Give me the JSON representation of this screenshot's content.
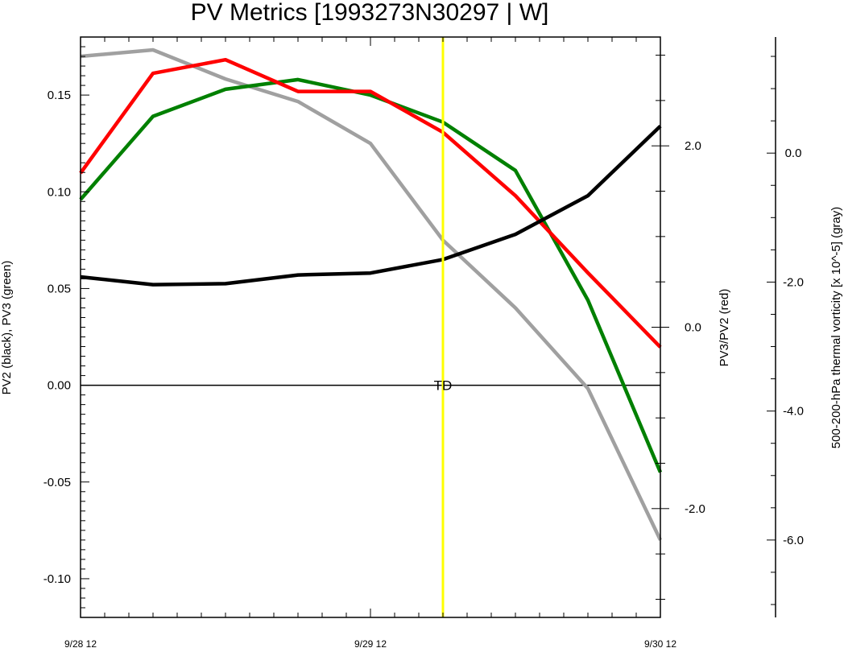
{
  "chart_data": {
    "type": "line",
    "title": "PV Metrics [1993273N30297 | W]",
    "x_tick_labels": [
      "9/28 12",
      "9/29 12",
      "9/30 12"
    ],
    "x_points": 9,
    "axes": {
      "left": {
        "label": "PV2 (black), PV3 (green)",
        "ylim": [
          -0.12,
          0.18
        ],
        "ticks": [
          -0.1,
          -0.05,
          0.0,
          0.05,
          0.1,
          0.15
        ],
        "tick_labels": [
          "-0.10",
          "-0.05",
          "0.00",
          "0.05",
          "0.10",
          "0.15"
        ]
      },
      "right": {
        "label": "PV3/PV2 (red)",
        "ylim": [
          -3.2,
          3.2
        ],
        "ticks": [
          -2.0,
          0.0,
          2.0
        ],
        "tick_labels": [
          "-2.0",
          "0.0",
          "2.0"
        ]
      },
      "far_right": {
        "label": "500-200-hPa thermal vorticity [x 10^-5] (gray)",
        "ylim": [
          -7.2,
          1.8
        ],
        "ticks": [
          -6.0,
          -4.0,
          -2.0,
          0.0
        ],
        "tick_labels": [
          "-6.0",
          "-4.0",
          "-2.0",
          "0.0"
        ]
      }
    },
    "series": [
      {
        "color": "#000000",
        "axis": "left",
        "values": [
          0.056,
          0.052,
          0.0525,
          0.057,
          0.058,
          0.065,
          0.078,
          0.098,
          0.134
        ]
      },
      {
        "color": "#008000",
        "axis": "left",
        "values": [
          0.096,
          0.139,
          0.153,
          0.158,
          0.15,
          0.136,
          0.111,
          0.044,
          -0.045
        ]
      },
      {
        "color": "#ff0000",
        "axis": "right",
        "values": [
          1.7,
          2.8,
          2.95,
          2.6,
          2.6,
          2.15,
          1.45,
          0.6,
          -0.22
        ]
      },
      {
        "color": "#a0a0a0",
        "axis": "far_right",
        "values": [
          1.5,
          1.6,
          1.15,
          0.8,
          0.15,
          -1.35,
          -2.4,
          -3.65,
          -6.0
        ]
      }
    ],
    "zero_line": {
      "axis": "left",
      "value": 0.0
    },
    "marker": {
      "x_index": 5,
      "color": "#ffff00",
      "label": "TD"
    },
    "grid": false,
    "legend": "none"
  }
}
